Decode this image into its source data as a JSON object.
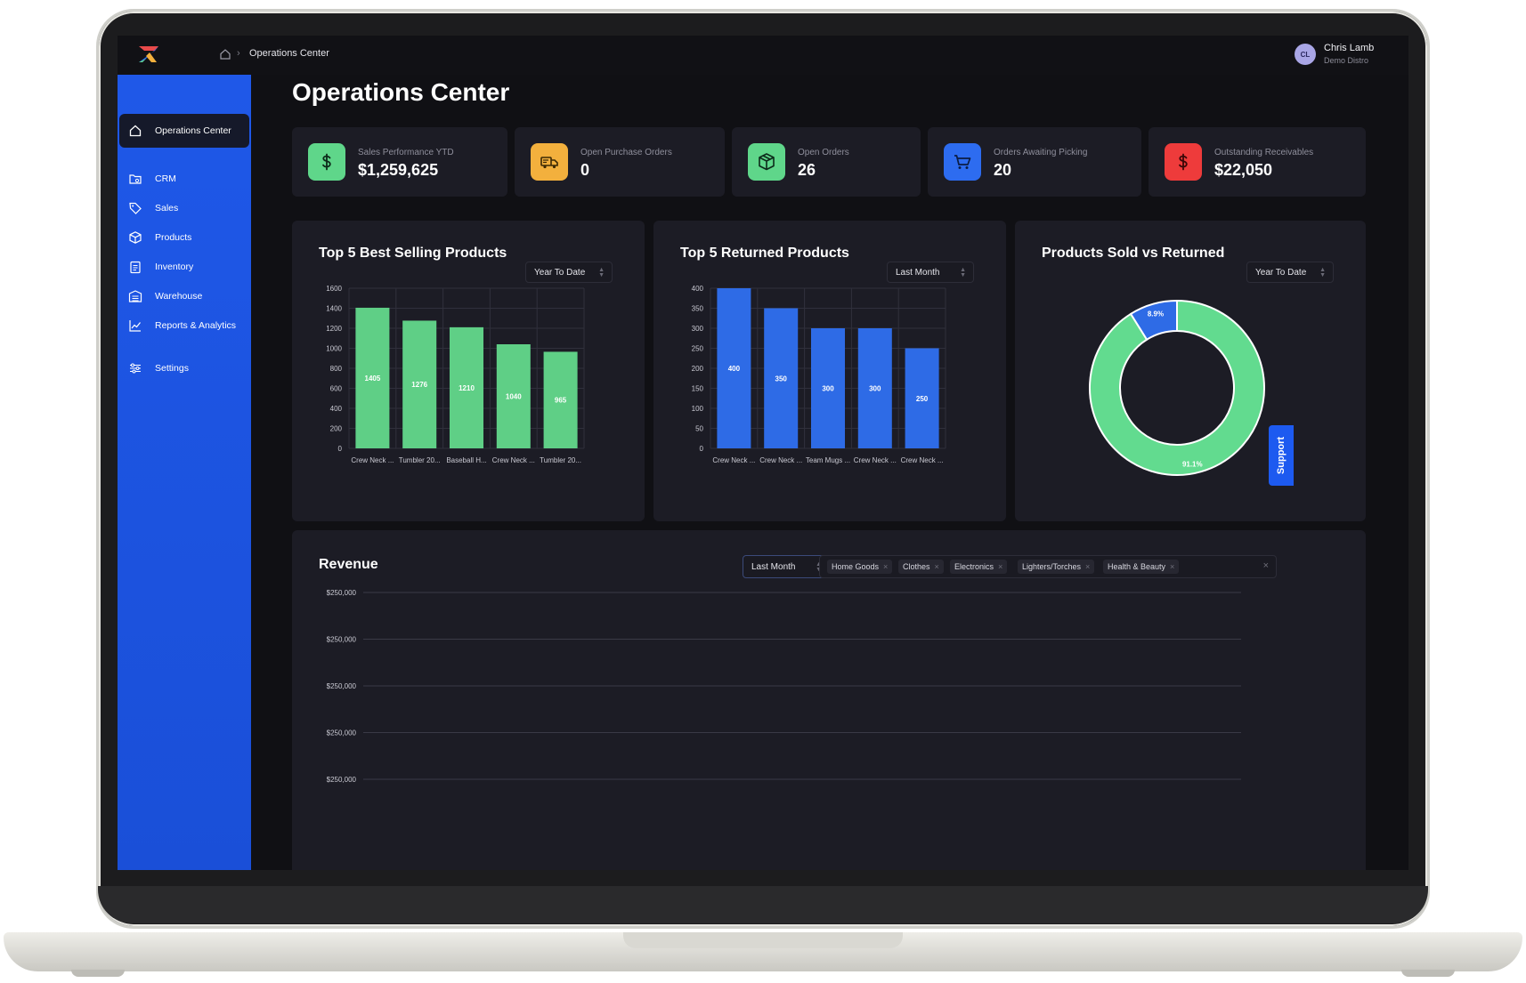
{
  "breadcrumb": {
    "current": "Operations Center"
  },
  "user": {
    "initials": "CL",
    "name": "Chris Lamb",
    "org": "Demo Distro"
  },
  "sidebar": {
    "items": [
      {
        "label": "Operations Center",
        "icon": "home-icon",
        "active": true
      },
      {
        "label": "CRM",
        "icon": "crm-icon"
      },
      {
        "label": "Sales",
        "icon": "tag-icon"
      },
      {
        "label": "Products",
        "icon": "box-icon"
      },
      {
        "label": "Inventory",
        "icon": "clipboard-icon"
      },
      {
        "label": "Warehouse",
        "icon": "warehouse-icon"
      },
      {
        "label": "Reports & Analytics",
        "icon": "chart-icon"
      },
      {
        "label": "Settings",
        "icon": "sliders-icon"
      }
    ]
  },
  "page": {
    "title": "Operations Center"
  },
  "kpis": [
    {
      "label": "Sales Performance YTD",
      "value": "$1,259,625",
      "icon": "dollar-icon",
      "color": "#5fd68a"
    },
    {
      "label": "Open Purchase Orders",
      "value": "0",
      "icon": "truck-icon",
      "color": "#f3b03d"
    },
    {
      "label": "Open Orders",
      "value": "26",
      "icon": "package-icon",
      "color": "#5fd68a"
    },
    {
      "label": "Orders Awaiting Picking",
      "value": "20",
      "icon": "cart-icon",
      "color": "#2d6cf0"
    },
    {
      "label": "Outstanding Receivables",
      "value": "$22,050",
      "icon": "dollar-icon",
      "color": "#ee3b3b"
    }
  ],
  "panels": {
    "best_selling": {
      "title": "Top 5 Best Selling Products",
      "filter": "Year To Date"
    },
    "returned": {
      "title": "Top 5 Returned Products",
      "filter": "Last Month"
    },
    "sold_vs_returned": {
      "title": "Products Sold vs Returned",
      "filter": "Year To Date"
    },
    "revenue": {
      "title": "Revenue",
      "filter": "Last Month",
      "categories": [
        "Home Goods",
        "Clothes",
        "Electronics",
        "Lighters/Torches",
        "Health & Beauty"
      ]
    }
  },
  "support": {
    "label": "Support"
  },
  "chart_data": [
    {
      "type": "bar",
      "title": "Top 5 Best Selling Products",
      "categories": [
        "Crew Neck ...",
        "Tumbler 20...",
        "Baseball H...",
        "Crew Neck ...",
        "Tumbler 20..."
      ],
      "values": [
        1405,
        1276,
        1210,
        1040,
        965
      ],
      "ylim": [
        0,
        1600
      ],
      "yticks": [
        0,
        200,
        400,
        600,
        800,
        1000,
        1200,
        1400,
        1600
      ],
      "color": "#5fcf86",
      "grid": true
    },
    {
      "type": "bar",
      "title": "Top 5 Returned Products",
      "categories": [
        "Crew Neck ...",
        "Crew Neck ...",
        "Team Mugs ...",
        "Crew Neck ...",
        "Crew Neck ..."
      ],
      "values": [
        400,
        350,
        300,
        300,
        250
      ],
      "ylim": [
        0,
        400
      ],
      "yticks": [
        0,
        50,
        100,
        150,
        200,
        250,
        300,
        350,
        400
      ],
      "color": "#2e6be6",
      "grid": true
    },
    {
      "type": "pie",
      "title": "Products Sold vs Returned",
      "slices": [
        {
          "label": "8.9%",
          "value": 8.9,
          "color": "#2e6be6"
        },
        {
          "label": "91.1%",
          "value": 91.1,
          "color": "#62db8f"
        }
      ],
      "donut": true
    },
    {
      "type": "line",
      "title": "Revenue",
      "yticks": [
        "$250,000",
        "$250,000",
        "$250,000",
        "$250,000",
        "$250,000"
      ],
      "series": [],
      "grid": true
    }
  ]
}
